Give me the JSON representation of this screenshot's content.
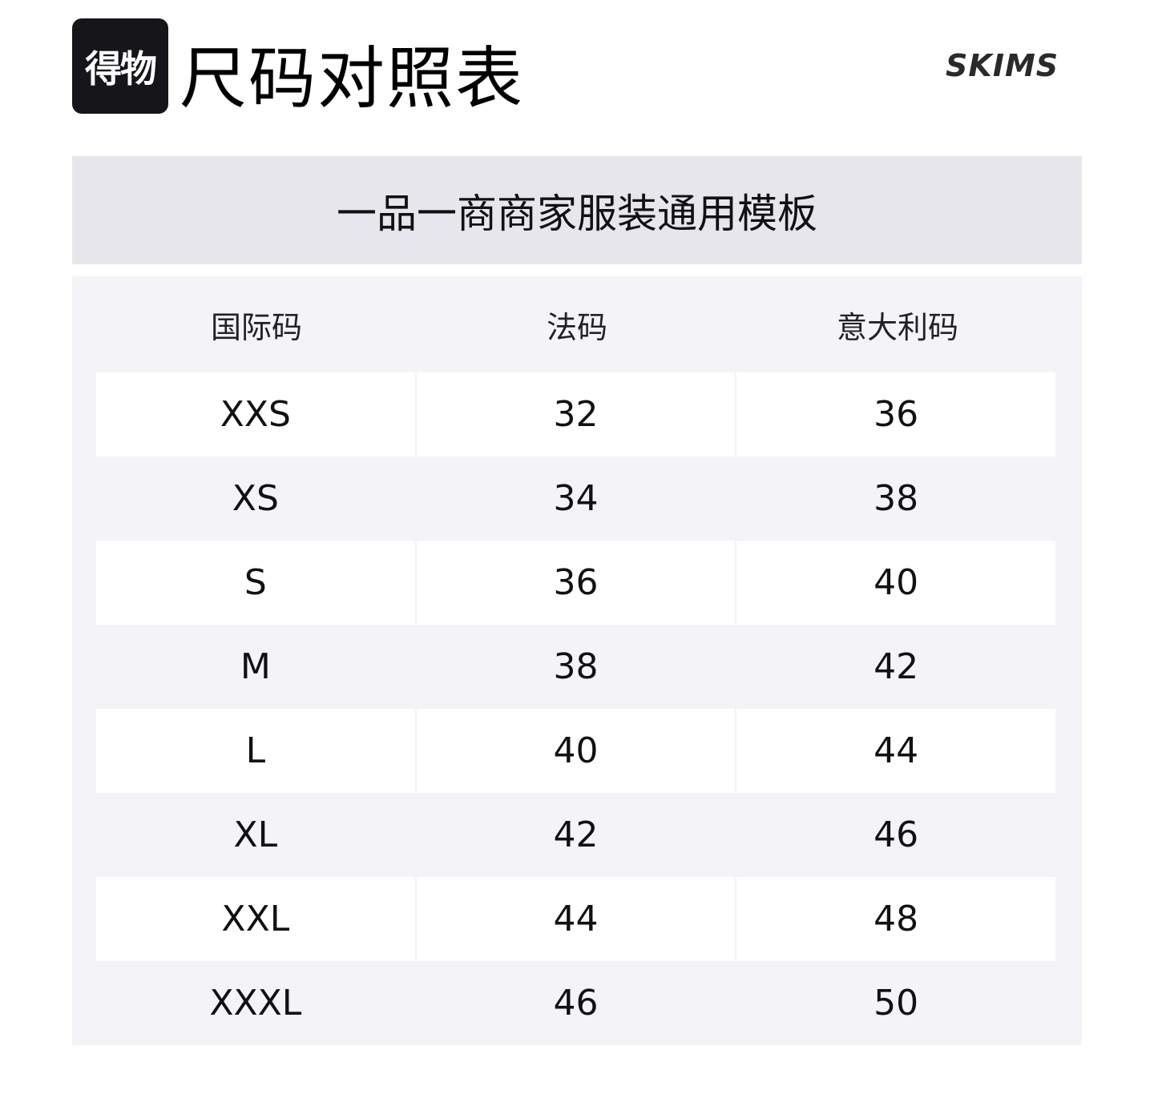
{
  "logo": {
    "text": "得物"
  },
  "title": "尺码对照表",
  "brand": "SKIMS",
  "subtitle": "一品一商商家服装通用模板",
  "table": {
    "headers": [
      "国际码",
      "法码",
      "意大利码"
    ],
    "rows": [
      [
        "XXS",
        "32",
        "36"
      ],
      [
        "XS",
        "34",
        "38"
      ],
      [
        "S",
        "36",
        "40"
      ],
      [
        "M",
        "38",
        "42"
      ],
      [
        "L",
        "40",
        "44"
      ],
      [
        "XL",
        "42",
        "46"
      ],
      [
        "XXL",
        "44",
        "48"
      ],
      [
        "XXXL",
        "46",
        "50"
      ]
    ]
  },
  "colors": {
    "band": "#e6e6ec",
    "table_bg": "#f4f4f8",
    "row_alt": "#ffffff",
    "logo_bg": "#16161a"
  }
}
